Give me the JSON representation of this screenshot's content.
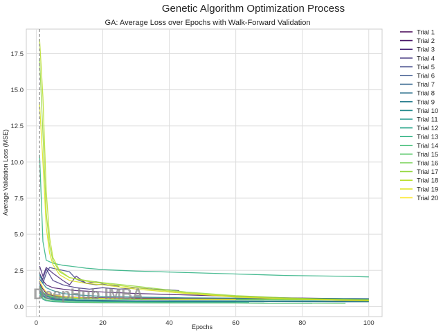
{
  "chart_data": {
    "type": "line",
    "suptitle": "Genetic Algorithm Optimization Process",
    "title": "GA: Average Loss over Epochs with Walk-Forward Validation",
    "xlabel": "Epochs",
    "ylabel": "Average Validation Loss (MSE)",
    "xlim": [
      -3,
      104
    ],
    "ylim": [
      -0.7,
      19.2
    ],
    "xticks": [
      0,
      20,
      40,
      60,
      80,
      100
    ],
    "yticks": [
      0.0,
      2.5,
      5.0,
      7.5,
      10.0,
      12.5,
      15.0,
      17.5
    ],
    "grid": true,
    "legend_position": "outside-right",
    "vline": {
      "x": 1,
      "style": "dashed",
      "color": "#888888"
    },
    "watermark": "DeepHub IMBA",
    "series": [
      {
        "name": "Trial 1",
        "color": "#440154",
        "x": [
          1,
          2,
          3,
          5,
          8,
          12,
          20,
          30,
          45,
          60,
          75,
          90,
          100
        ],
        "y": [
          1.6,
          1.2,
          0.9,
          0.75,
          0.68,
          0.64,
          0.6,
          0.58,
          0.57,
          0.56,
          0.55,
          0.54,
          0.53
        ]
      },
      {
        "name": "Trial 2",
        "color": "#481567",
        "x": [
          1,
          2,
          3,
          5,
          8,
          12,
          20,
          30,
          45,
          60,
          75,
          90,
          100
        ],
        "y": [
          2.3,
          1.8,
          1.5,
          1.3,
          1.2,
          1.1,
          1.0,
          0.9,
          0.8,
          0.7,
          0.6,
          0.55,
          0.5
        ]
      },
      {
        "name": "Trial 3",
        "color": "#482677",
        "x": [
          1,
          2,
          3,
          5,
          8,
          10,
          12,
          15,
          18,
          20
        ],
        "y": [
          2.8,
          2.1,
          2.7,
          2.3,
          1.8,
          1.5,
          2.1,
          1.6,
          1.7,
          1.6
        ]
      },
      {
        "name": "Trial 4",
        "color": "#453781",
        "x": [
          1,
          2,
          3,
          5,
          8,
          12,
          16,
          20,
          25,
          30,
          35,
          40,
          43
        ],
        "y": [
          2.2,
          1.9,
          2.6,
          1.8,
          1.5,
          1.3,
          1.2,
          1.3,
          1.2,
          1.3,
          1.2,
          1.15,
          1.1
        ]
      },
      {
        "name": "Trial 5",
        "color": "#3f4788",
        "x": [
          1,
          2,
          3,
          4,
          6,
          8,
          10,
          12,
          15,
          18,
          20,
          22,
          25
        ],
        "y": [
          1.9,
          1.6,
          2.3,
          2.7,
          2.6,
          2.5,
          2.4,
          1.9,
          1.6,
          1.5,
          1.55,
          1.45,
          1.4
        ]
      },
      {
        "name": "Trial 6",
        "color": "#39558c",
        "x": [
          1,
          2,
          3,
          5,
          8,
          12,
          20,
          30,
          45,
          60,
          75,
          90,
          100
        ],
        "y": [
          0.9,
          0.7,
          0.6,
          0.52,
          0.48,
          0.45,
          0.42,
          0.4,
          0.39,
          0.38,
          0.37,
          0.37,
          0.36
        ]
      },
      {
        "name": "Trial 7",
        "color": "#32648e",
        "x": [
          1,
          2,
          3,
          5,
          8,
          12,
          20,
          30,
          40,
          50,
          60
        ],
        "y": [
          1.1,
          0.8,
          0.6,
          0.5,
          0.45,
          0.4,
          0.37,
          0.35,
          0.34,
          0.33,
          0.32
        ]
      },
      {
        "name": "Trial 8",
        "color": "#2d718e",
        "x": [
          1,
          2,
          3,
          5,
          8,
          12,
          20,
          30,
          45,
          60,
          75,
          90,
          100
        ],
        "y": [
          1.3,
          0.9,
          0.7,
          0.55,
          0.48,
          0.44,
          0.4,
          0.38,
          0.36,
          0.35,
          0.35,
          0.34,
          0.34
        ]
      },
      {
        "name": "Trial 9",
        "color": "#287d8e",
        "x": [
          1,
          2,
          3,
          5,
          8,
          12,
          20,
          30,
          45,
          60,
          75,
          90,
          100
        ],
        "y": [
          1.5,
          1.0,
          0.75,
          0.6,
          0.5,
          0.45,
          0.4,
          0.37,
          0.35,
          0.34,
          0.33,
          0.32,
          0.32
        ]
      },
      {
        "name": "Trial 10",
        "color": "#238a8d",
        "x": [
          1,
          2,
          3,
          5,
          8,
          12,
          20,
          30,
          45,
          60,
          75,
          90,
          100
        ],
        "y": [
          2.2,
          1.6,
          1.3,
          1.1,
          0.9,
          0.8,
          0.7,
          0.65,
          0.6,
          0.58,
          0.56,
          0.55,
          0.54
        ]
      },
      {
        "name": "Trial 11",
        "color": "#1f968b",
        "x": [
          1,
          2,
          3,
          5,
          8,
          12,
          20,
          30,
          45,
          60,
          70,
          80,
          83
        ],
        "y": [
          0.8,
          0.5,
          0.4,
          0.33,
          0.3,
          0.28,
          0.26,
          0.25,
          0.24,
          0.24,
          0.23,
          0.23,
          0.23
        ]
      },
      {
        "name": "Trial 12",
        "color": "#20a386",
        "x": [
          1,
          2,
          3,
          5,
          8,
          12,
          20,
          30,
          40,
          50,
          60,
          64
        ],
        "y": [
          1.0,
          0.7,
          0.55,
          0.45,
          0.4,
          0.37,
          0.34,
          0.32,
          0.31,
          0.3,
          0.3,
          0.3
        ]
      },
      {
        "name": "Trial 13",
        "color": "#29af7f",
        "x": [
          1,
          2,
          3,
          5,
          8,
          10,
          15,
          20,
          30,
          45,
          60,
          75,
          90,
          100
        ],
        "y": [
          10.5,
          4.5,
          3.2,
          3.0,
          2.85,
          2.8,
          2.65,
          2.55,
          2.45,
          2.35,
          2.25,
          2.15,
          2.1,
          2.05
        ]
      },
      {
        "name": "Trial 14",
        "color": "#3dbc74",
        "x": [
          1,
          2,
          3,
          5,
          8,
          12,
          20,
          30,
          45,
          60,
          75,
          90,
          100
        ],
        "y": [
          1.4,
          1.0,
          0.8,
          0.65,
          0.58,
          0.53,
          0.5,
          0.48,
          0.47,
          0.46,
          0.45,
          0.45,
          0.44
        ]
      },
      {
        "name": "Trial 15",
        "color": "#56c667",
        "x": [
          1,
          2,
          3,
          5,
          8,
          12,
          20,
          30,
          40,
          50,
          60,
          70,
          80,
          90,
          93
        ],
        "y": [
          0.9,
          0.6,
          0.45,
          0.38,
          0.33,
          0.3,
          0.28,
          0.26,
          0.25,
          0.24,
          0.24,
          0.23,
          0.23,
          0.22,
          0.22
        ]
      },
      {
        "name": "Trial 16",
        "color": "#75d054",
        "x": [
          1,
          2,
          3,
          5,
          8,
          12,
          20,
          30,
          45,
          60,
          75,
          90,
          100
        ],
        "y": [
          1.3,
          1.0,
          0.8,
          0.7,
          0.62,
          0.58,
          0.54,
          0.52,
          0.5,
          0.49,
          0.48,
          0.47,
          0.47
        ]
      },
      {
        "name": "Trial 17",
        "color": "#95d840",
        "x": [
          1,
          2,
          3,
          4,
          5,
          7,
          10,
          15,
          20,
          30,
          45,
          60,
          75,
          90,
          100
        ],
        "y": [
          17.2,
          12.0,
          6.5,
          4.2,
          3.2,
          2.4,
          2.0,
          1.8,
          1.65,
          1.4,
          1.0,
          0.75,
          0.6,
          0.5,
          0.45
        ]
      },
      {
        "name": "Trial 18",
        "color": "#b8de29",
        "x": [
          1,
          2,
          3,
          4,
          5,
          7,
          10,
          15,
          20,
          30,
          45,
          60,
          75,
          90,
          100
        ],
        "y": [
          18.5,
          14.5,
          8.0,
          4.8,
          3.4,
          2.5,
          2.0,
          1.75,
          1.6,
          1.3,
          0.95,
          0.7,
          0.55,
          0.45,
          0.42
        ]
      },
      {
        "name": "Trial 19",
        "color": "#dce319",
        "x": [
          1,
          2,
          3,
          4,
          5,
          7,
          10,
          15,
          20,
          30,
          45,
          60,
          75,
          90,
          100
        ],
        "y": [
          14.0,
          10.0,
          5.5,
          3.7,
          2.9,
          2.2,
          1.8,
          1.6,
          1.5,
          1.2,
          0.9,
          0.65,
          0.52,
          0.45,
          0.4
        ]
      },
      {
        "name": "Trial 20",
        "color": "#fde725",
        "x": [
          1,
          2,
          3,
          5,
          8,
          12,
          20,
          30,
          40,
          50,
          60
        ],
        "y": [
          1.8,
          1.3,
          1.0,
          0.8,
          0.7,
          0.62,
          0.56,
          0.52,
          0.5,
          0.49,
          0.48
        ]
      }
    ]
  }
}
